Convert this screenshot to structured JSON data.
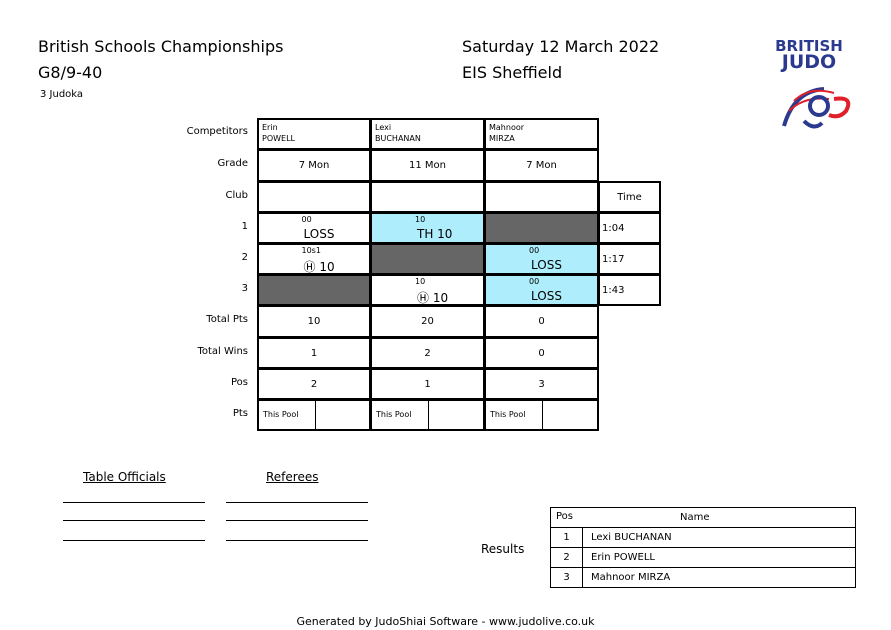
{
  "header": {
    "event": "British Schools Championships",
    "category": "G8/9-40",
    "judoka_count": "3 Judoka",
    "date": "Saturday 12 March 2022",
    "venue": "EIS Sheffield",
    "logo_text": "BRITISH JUDO"
  },
  "row_labels": {
    "competitors": "Competitors",
    "grade": "Grade",
    "club": "Club",
    "r1": "1",
    "r2": "2",
    "r3": "3",
    "total_pts": "Total Pts",
    "total_wins": "Total Wins",
    "pos": "Pos",
    "pts": "Pts",
    "time": "Time"
  },
  "competitors": [
    {
      "first": "Erin",
      "last": "POWELL",
      "grade": "7 Mon",
      "club": "",
      "total_pts": "10",
      "total_wins": "1",
      "pos": "2",
      "this_pool": "This Pool"
    },
    {
      "first": "Lexi",
      "last": "BUCHANAN",
      "grade": "11 Mon",
      "club": "",
      "total_pts": "20",
      "total_wins": "2",
      "pos": "1",
      "this_pool": "This Pool"
    },
    {
      "first": "Mahnoor",
      "last": "MIRZA",
      "grade": "7 Mon",
      "club": "",
      "total_pts": "0",
      "total_wins": "0",
      "pos": "3",
      "this_pool": "This Pool"
    }
  ],
  "contests": [
    {
      "time": "1:04",
      "cells": [
        {
          "score": "00",
          "result": "LOSS",
          "state": "normal"
        },
        {
          "score": "10",
          "result": "TH 10",
          "state": "winner"
        },
        {
          "state": "blocked"
        }
      ]
    },
    {
      "time": "1:17",
      "cells": [
        {
          "score": "10s1",
          "result": "Ⓗ 10",
          "state": "normal"
        },
        {
          "state": "blocked"
        },
        {
          "score": "00",
          "result": "LOSS",
          "state": "winner"
        }
      ]
    },
    {
      "time": "1:43",
      "cells": [
        {
          "state": "blocked"
        },
        {
          "score": "10",
          "result": "Ⓗ 10",
          "state": "normal"
        },
        {
          "score": "00",
          "result": "LOSS",
          "state": "winner"
        }
      ]
    }
  ],
  "officials": {
    "table": "Table Officials",
    "referees": "Referees"
  },
  "results": {
    "label": "Results",
    "headers": {
      "pos": "Pos",
      "name": "Name"
    },
    "rows": [
      {
        "pos": "1",
        "name": "Lexi BUCHANAN"
      },
      {
        "pos": "2",
        "name": "Erin POWELL"
      },
      {
        "pos": "3",
        "name": "Mahnoor MIRZA"
      }
    ]
  },
  "footer": "Generated by JudoShiai Software - www.judolive.co.uk",
  "colors": {
    "winner": "#aeeefc",
    "blocked": "#666666",
    "logo_blue": "#2b3a8f",
    "logo_red": "#e0202a"
  }
}
